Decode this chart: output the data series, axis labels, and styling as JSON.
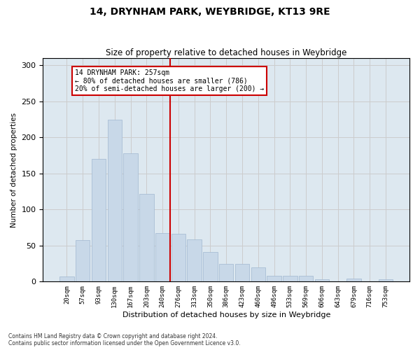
{
  "title": "14, DRYNHAM PARK, WEYBRIDGE, KT13 9RE",
  "subtitle": "Size of property relative to detached houses in Weybridge",
  "xlabel": "Distribution of detached houses by size in Weybridge",
  "ylabel": "Number of detached properties",
  "bar_labels": [
    "20sqm",
    "57sqm",
    "93sqm",
    "130sqm",
    "167sqm",
    "203sqm",
    "240sqm",
    "276sqm",
    "313sqm",
    "350sqm",
    "386sqm",
    "423sqm",
    "460sqm",
    "496sqm",
    "533sqm",
    "569sqm",
    "606sqm",
    "643sqm",
    "679sqm",
    "716sqm",
    "753sqm"
  ],
  "bar_heights": [
    7,
    58,
    170,
    225,
    178,
    122,
    67,
    66,
    59,
    41,
    25,
    25,
    20,
    8,
    8,
    8,
    3,
    0,
    4,
    0,
    3
  ],
  "bar_color": "#c8d8e8",
  "bar_edge_color": "#a0b8d0",
  "vline_color": "#cc0000",
  "annotation_text": "14 DRYNHAM PARK: 257sqm\n← 80% of detached houses are smaller (786)\n20% of semi-detached houses are larger (200) →",
  "annotation_box_edge": "#cc0000",
  "ylim": [
    0,
    310
  ],
  "yticks": [
    0,
    50,
    100,
    150,
    200,
    250,
    300
  ],
  "grid_color": "#cccccc",
  "bg_color": "#dde8f0",
  "footer1": "Contains HM Land Registry data © Crown copyright and database right 2024.",
  "footer2": "Contains public sector information licensed under the Open Government Licence v3.0."
}
